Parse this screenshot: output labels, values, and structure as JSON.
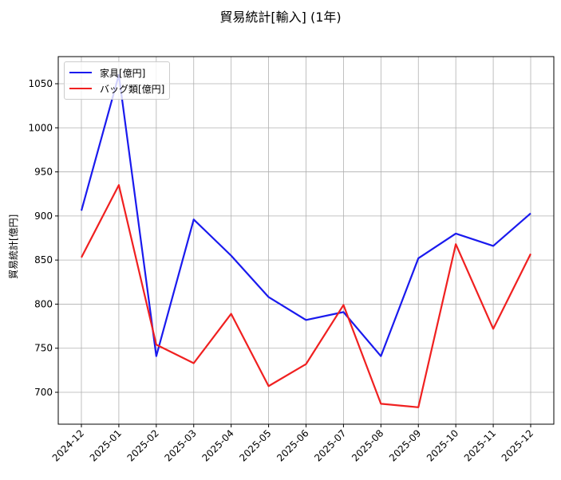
{
  "chart_data": {
    "type": "line",
    "title": "貿易統計[輸入] (1年)",
    "xlabel": "",
    "ylabel": "貿易統計[億円]",
    "categories": [
      "2024-12",
      "2025-01",
      "2025-02",
      "2025-03",
      "2025-04",
      "2025-05",
      "2025-06",
      "2025-07",
      "2025-08",
      "2025-09",
      "2025-10",
      "2025-11",
      "2025-12"
    ],
    "series": [
      {
        "name": "家具[億円]",
        "color": "#0000ff",
        "values": [
          906,
          1060,
          741,
          896,
          855,
          808,
          782,
          791,
          741,
          852,
          880,
          866,
          903
        ]
      },
      {
        "name": "バッグ類[億円]",
        "color": "#ff0000",
        "values": [
          853,
          935,
          754,
          733,
          789,
          707,
          732,
          799,
          687,
          683,
          868,
          772,
          857
        ]
      }
    ],
    "yticks": [
      700,
      750,
      800,
      850,
      900,
      950,
      1000,
      1050
    ],
    "ylim": [
      665,
      1080
    ],
    "grid": true,
    "legend_position": "upper left"
  }
}
